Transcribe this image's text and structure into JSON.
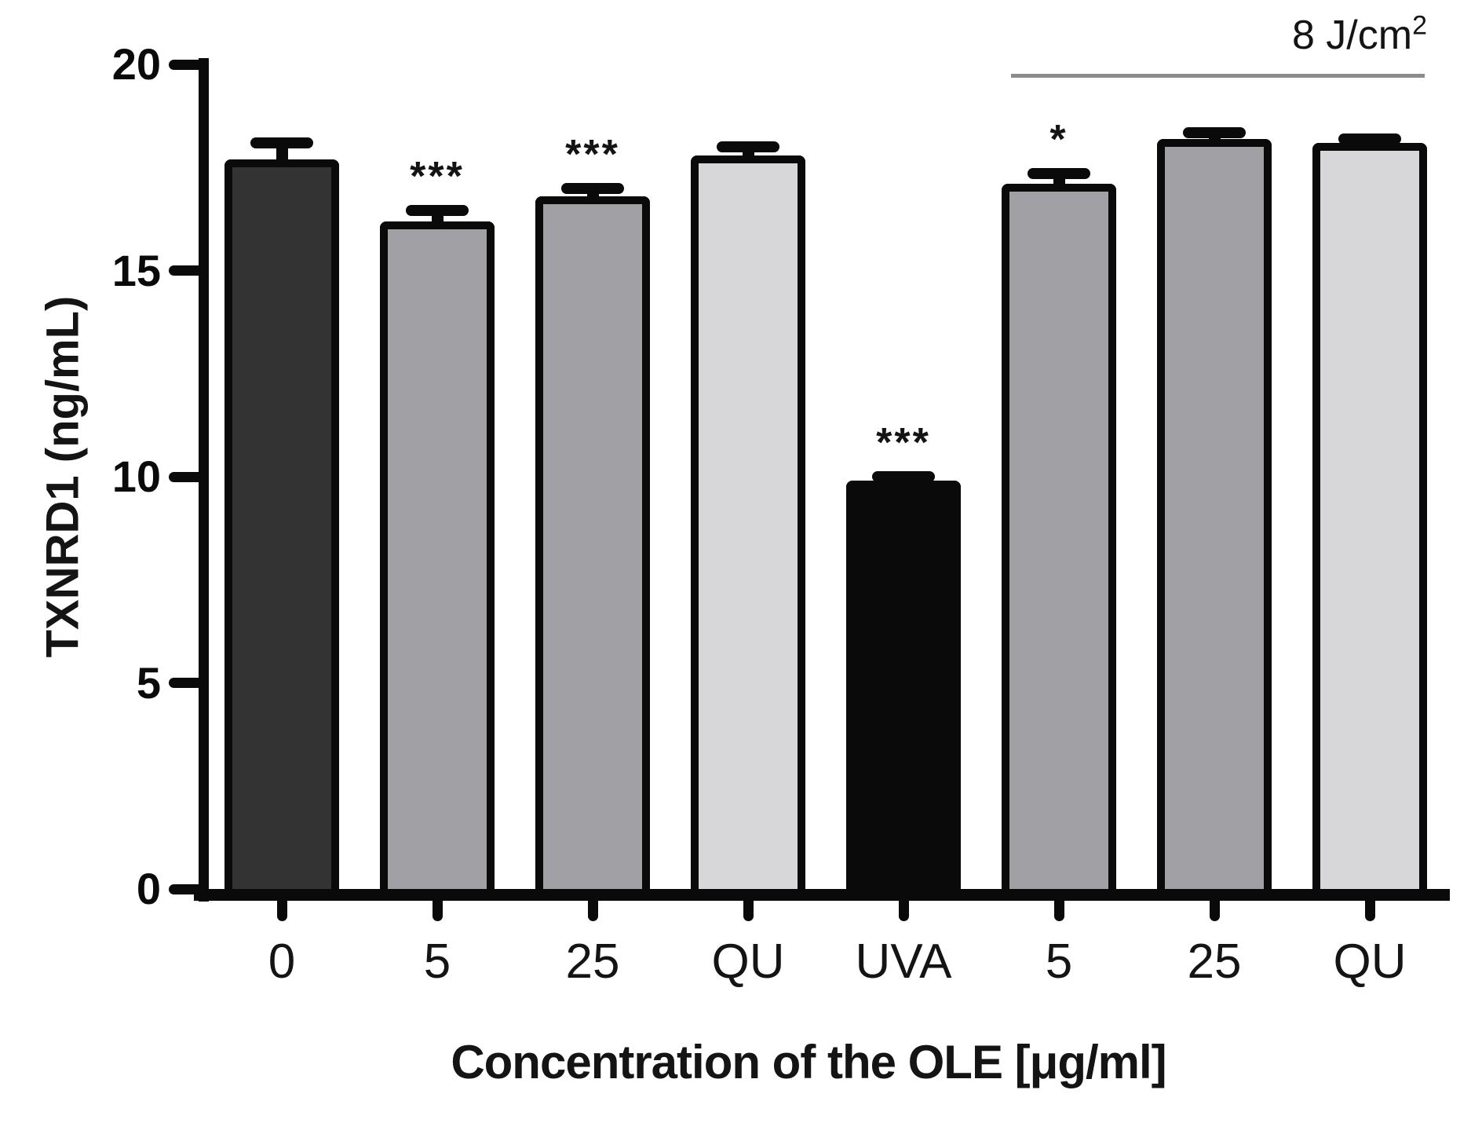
{
  "chart_data": {
    "type": "bar",
    "title": "",
    "xlabel": "Concentration of the OLE [μg/ml]",
    "ylabel": "TXNRD1 (ng/mL)",
    "ylim": [
      0,
      20
    ],
    "yticks": [
      "0",
      "5",
      "10",
      "15",
      "20"
    ],
    "grid": false,
    "legend": false,
    "categories": [
      "0",
      "5",
      "25",
      "QU",
      "UVA",
      "5",
      "25",
      "QU"
    ],
    "values": [
      17.7,
      16.2,
      16.8,
      17.8,
      9.9,
      17.1,
      18.2,
      18.1
    ],
    "errors": [
      0.4,
      0.25,
      0.2,
      0.2,
      0.1,
      0.25,
      0.15,
      0.1
    ],
    "significance": [
      "",
      "***",
      "***",
      "",
      "***",
      "*",
      "",
      ""
    ],
    "bar_fill_colors": [
      "#333333",
      "#a1a1a5",
      "#a1a1a5",
      "#d7d7d9",
      "#0a0a0a",
      "#a1a1a5",
      "#a1a1a5",
      "#d7d7d9"
    ],
    "bar_edge_color": "#0a0a0a",
    "group_annotation": {
      "text": "8 J/cm",
      "superscript": "2",
      "start_category_index": 5,
      "end_category_index": 7,
      "line_color": "#8c8c8c"
    }
  }
}
